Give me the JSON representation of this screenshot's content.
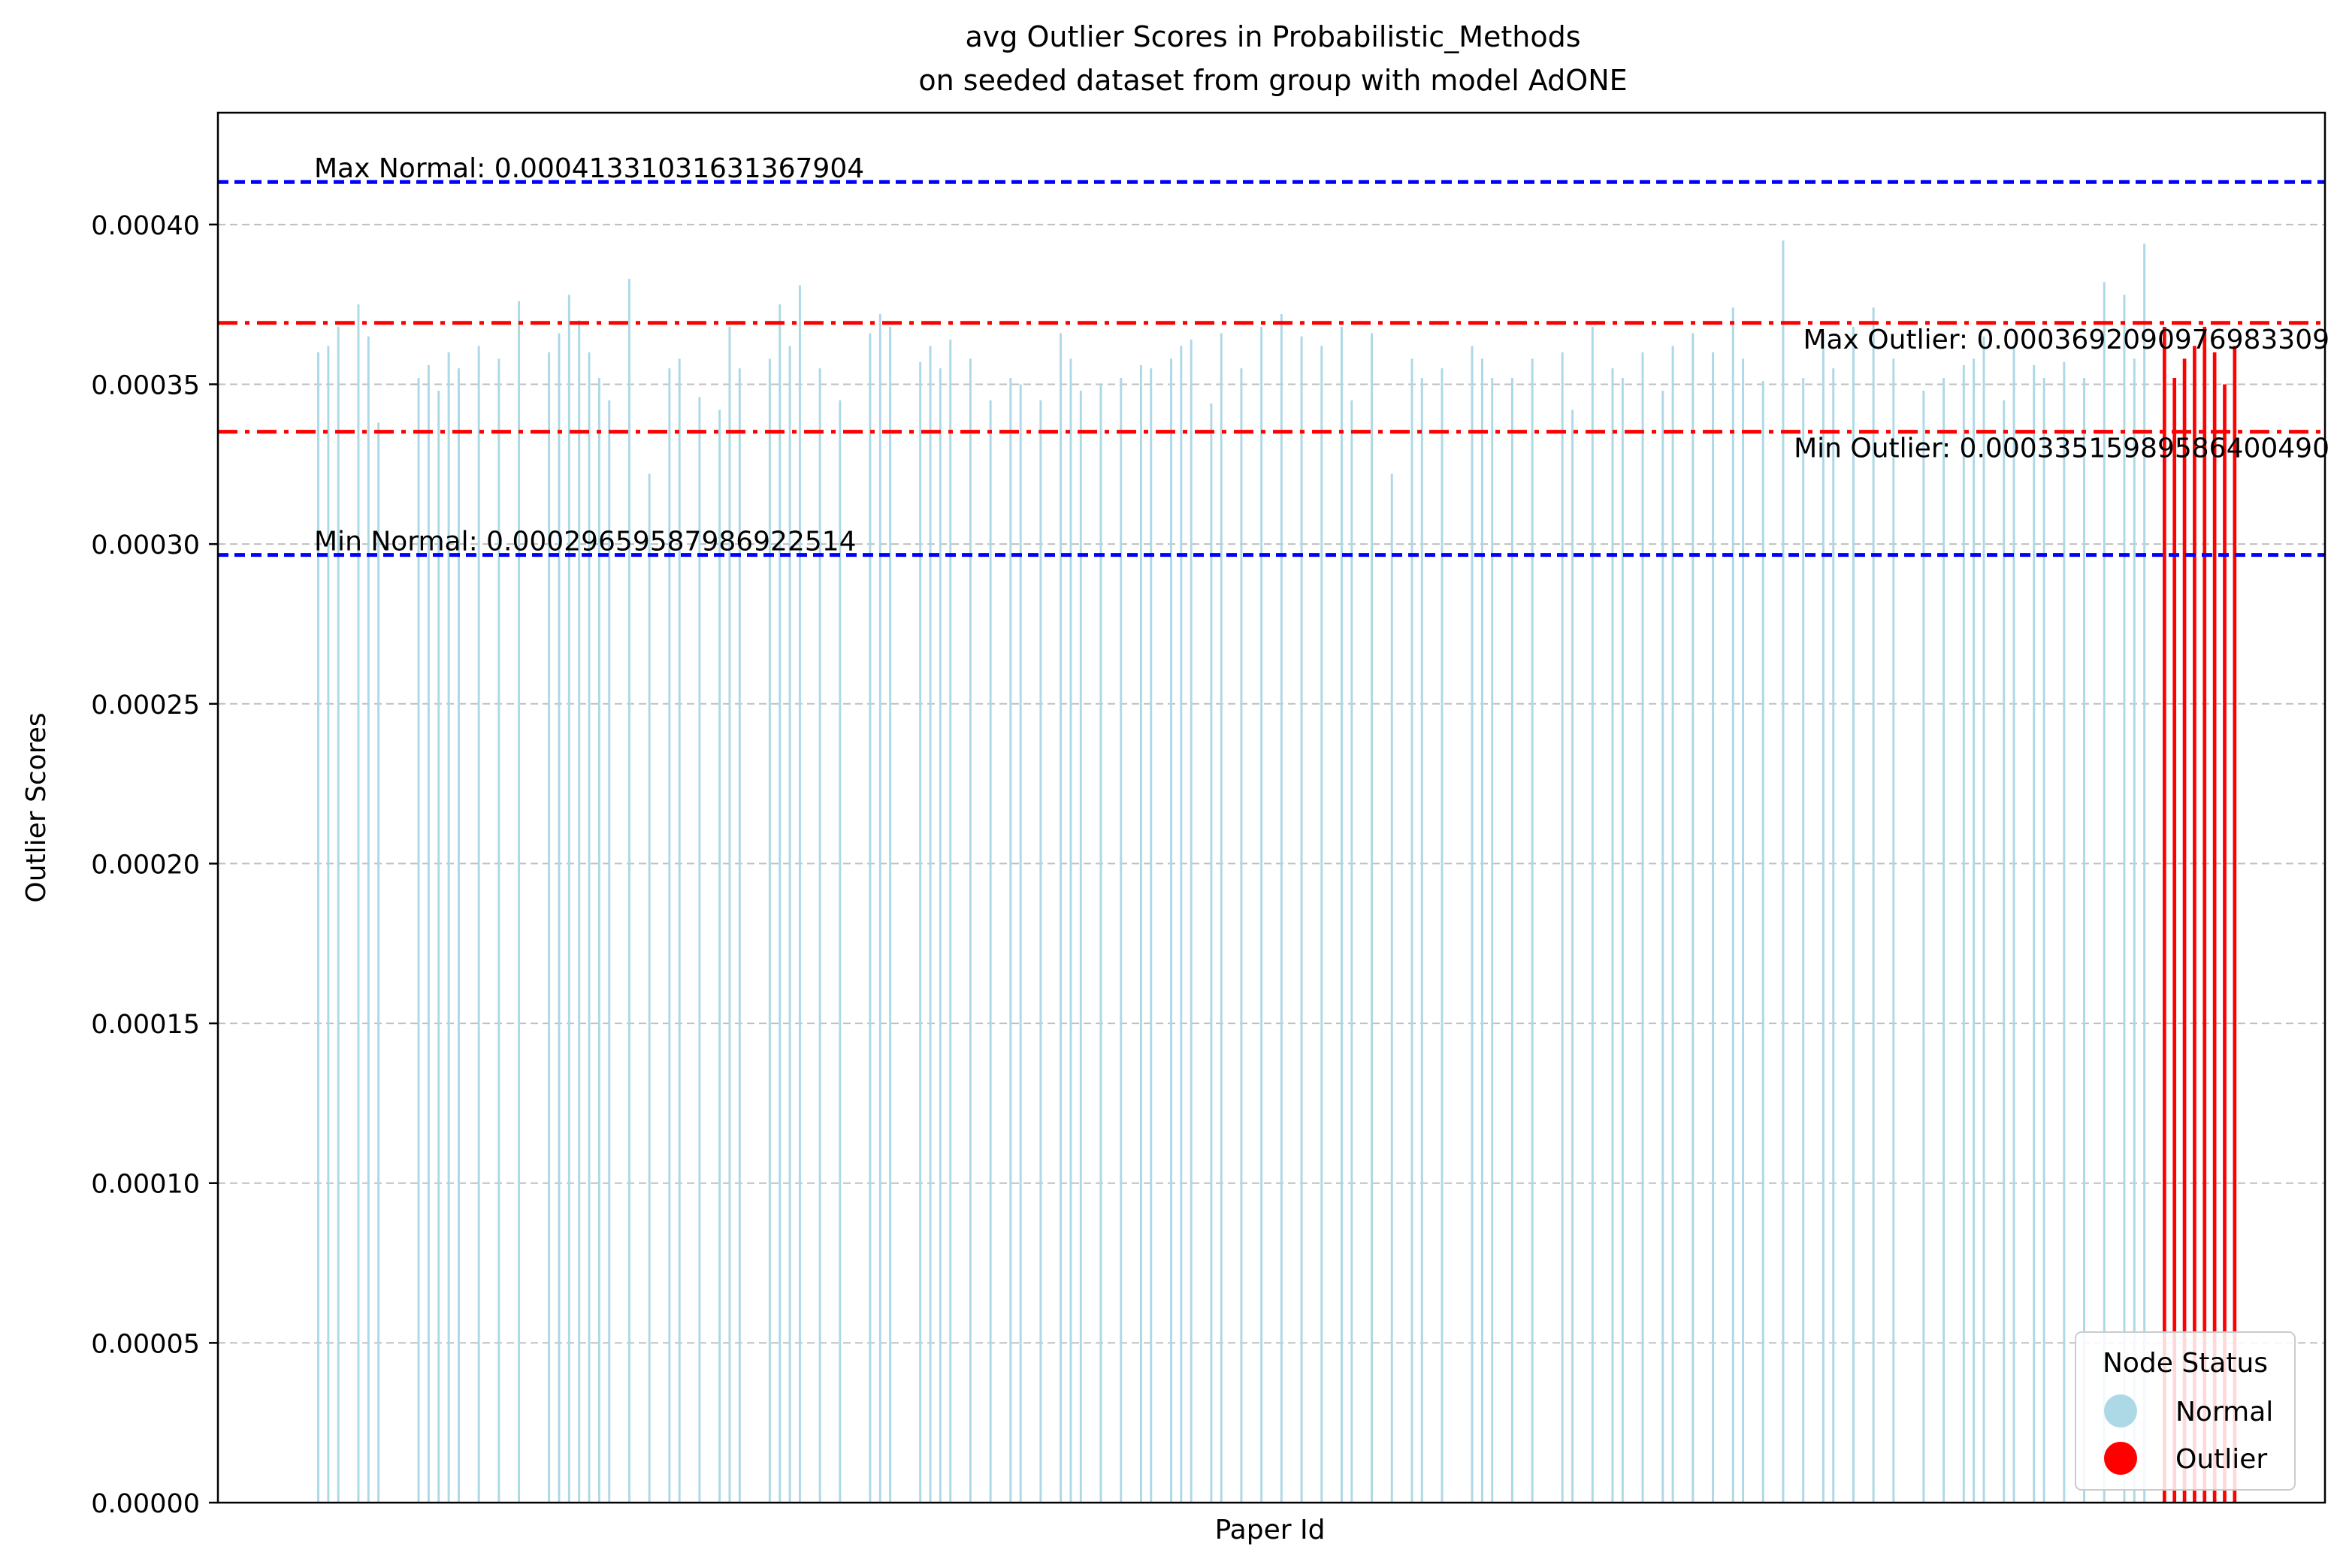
{
  "chart_data": {
    "type": "bar",
    "title": [
      "avg Outlier Scores in Probabilistic_Methods",
      "on seeded dataset from group with model AdONE"
    ],
    "xlabel": "Paper Id",
    "ylabel": "Outlier Scores",
    "ylim": [
      0,
      0.000435
    ],
    "yticks": [
      0.0,
      5e-05,
      0.0001,
      0.00015,
      0.0002,
      0.00025,
      0.0003,
      0.00035,
      0.0004
    ],
    "ytick_labels": [
      "0.00000",
      "0.00005",
      "0.00010",
      "0.00015",
      "0.00020",
      "0.00025",
      "0.00030",
      "0.00035",
      "0.00040"
    ],
    "grid": "y-dashed",
    "colors": {
      "normal": "#add8e6",
      "outlier": "#ff0000",
      "normal_line": "#0000ff",
      "outlier_line": "#ff0000"
    },
    "reference_lines": [
      {
        "label": "Max Normal: 0.00041331031631367904",
        "value": 0.00041331031631367904,
        "style": "dashed",
        "color": "#0000ff",
        "label_side": "left"
      },
      {
        "label": "Min Normal: 0.00029659587986922514",
        "value": 0.00029659587986922514,
        "style": "dashed",
        "color": "#0000ff",
        "label_side": "left"
      },
      {
        "label": "Max Outlier: 0.0003692090976983309",
        "value": 0.0003692090976983309,
        "style": "dashdot",
        "color": "#ff0000",
        "label_side": "right"
      },
      {
        "label": "Min Outlier: 0.00033515989586400490",
        "value": 0.0003351598958640049,
        "style": "dashdot",
        "color": "#ff0000",
        "label_side": "right"
      }
    ],
    "legend": {
      "title": "Node Status",
      "position": "lower-right",
      "entries": [
        {
          "label": "Normal",
          "color": "#add8e6"
        },
        {
          "label": "Outlier",
          "color": "#ff0000"
        }
      ]
    },
    "x_range": [
      0,
      210
    ],
    "series": [
      {
        "name": "Normal",
        "x": [
          10,
          11,
          12,
          14,
          15,
          16,
          20,
          21,
          22,
          23,
          24,
          26,
          28,
          30,
          33,
          34,
          35,
          36,
          37,
          38,
          39,
          41,
          43,
          45,
          46,
          48,
          50,
          51,
          52,
          55,
          56,
          57,
          58,
          60,
          62,
          65,
          66,
          67,
          70,
          71,
          72,
          73,
          75,
          77,
          79,
          80,
          82,
          84,
          85,
          86,
          88,
          90,
          92,
          93,
          95,
          96,
          97,
          99,
          100,
          102,
          104,
          106,
          108,
          110,
          112,
          113,
          115,
          117,
          119,
          120,
          122,
          125,
          126,
          127,
          129,
          131,
          134,
          135,
          137,
          139,
          140,
          142,
          144,
          145,
          147,
          149,
          151,
          152,
          154,
          156,
          158,
          160,
          161,
          163,
          165,
          167,
          170,
          172,
          174,
          175,
          176,
          178,
          179,
          181,
          182,
          184,
          186,
          188,
          190,
          191,
          192
        ],
        "values": [
          0.00036,
          0.000362,
          0.000368,
          0.000375,
          0.000365,
          0.000338,
          0.000352,
          0.000356,
          0.000348,
          0.00036,
          0.000355,
          0.000362,
          0.000358,
          0.000376,
          0.00036,
          0.000366,
          0.000378,
          0.00037,
          0.00036,
          0.000352,
          0.000345,
          0.000383,
          0.000322,
          0.000355,
          0.000358,
          0.000346,
          0.000342,
          0.000368,
          0.000355,
          0.000358,
          0.000375,
          0.000362,
          0.000381,
          0.000355,
          0.000345,
          0.000366,
          0.000372,
          0.000368,
          0.000357,
          0.000362,
          0.000355,
          0.000364,
          0.000358,
          0.000345,
          0.000352,
          0.00035,
          0.000345,
          0.000366,
          0.000358,
          0.000348,
          0.00035,
          0.000352,
          0.000356,
          0.000355,
          0.000358,
          0.000362,
          0.000364,
          0.000344,
          0.000366,
          0.000355,
          0.000368,
          0.000372,
          0.000365,
          0.000362,
          0.000368,
          0.000345,
          0.000366,
          0.000322,
          0.000358,
          0.000352,
          0.000355,
          0.000362,
          0.000358,
          0.000352,
          0.000352,
          0.000358,
          0.00036,
          0.000342,
          0.000368,
          0.000355,
          0.000352,
          0.00036,
          0.000348,
          0.000362,
          0.000366,
          0.00036,
          0.000374,
          0.000358,
          0.000351,
          0.000395,
          0.000352,
          0.000366,
          0.000355,
          0.000368,
          0.000374,
          0.000358,
          0.000348,
          0.000352,
          0.000356,
          0.000358,
          0.000365,
          0.000345,
          0.000362,
          0.000356,
          0.000352,
          0.000357,
          0.000352,
          0.000382,
          0.000378,
          0.000358,
          0.000394
        ]
      },
      {
        "name": "Outlier",
        "x": [
          194,
          195,
          196,
          197,
          198,
          199,
          200,
          201
        ],
        "values": [
          0.000368,
          0.000352,
          0.000358,
          0.000362,
          0.000368,
          0.00036,
          0.00035,
          0.000362
        ]
      }
    ]
  }
}
